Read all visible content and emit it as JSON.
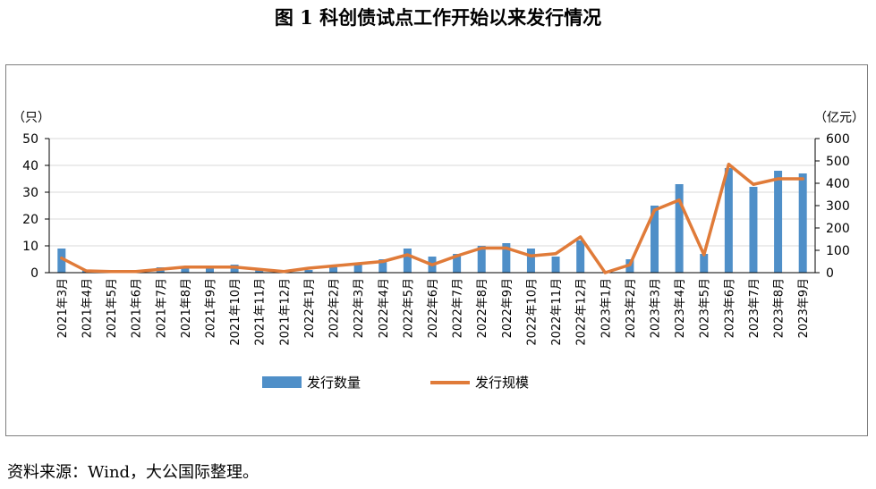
{
  "title": "图 1  科创债试点工作开始以来发行情况",
  "source": "资料来源：Wind，大公国际整理。",
  "chart_data": {
    "type": "bar+line",
    "categories": [
      "2021年3月",
      "2021年4月",
      "2021年5月",
      "2021年6月",
      "2021年7月",
      "2021年8月",
      "2021年9月",
      "2021年10月",
      "2021年11月",
      "2021年12月",
      "2022年1月",
      "2022年2月",
      "2022年3月",
      "2022年4月",
      "2022年5月",
      "2022年6月",
      "2022年7月",
      "2022年8月",
      "2022年9月",
      "2022年10月",
      "2022年11月",
      "2022年12月",
      "2023年1月",
      "2023年2月",
      "2023年3月",
      "2023年4月",
      "2023年5月",
      "2023年6月",
      "2023年7月",
      "2023年8月",
      "2023年9月"
    ],
    "left_axis": {
      "unit": "（只）",
      "ylim": [
        0,
        50
      ],
      "ticks": [
        "0",
        "10",
        "20",
        "30",
        "40",
        "50"
      ]
    },
    "right_axis": {
      "unit": "（亿元）",
      "ylim": [
        0,
        600
      ],
      "ticks": [
        "0",
        "100",
        "200",
        "300",
        "400",
        "500",
        "600"
      ]
    },
    "series": [
      {
        "name": "发行数量",
        "type": "bar",
        "axis": "left",
        "color": "#4f8fc8",
        "values": [
          9,
          1,
          1,
          0,
          2,
          2,
          2,
          3,
          1,
          0,
          1,
          2,
          3,
          5,
          9,
          6,
          7,
          10,
          11,
          9,
          6,
          12,
          0,
          5,
          25,
          33,
          7,
          39,
          32,
          38,
          37
        ]
      },
      {
        "name": "发行规模",
        "type": "line",
        "axis": "right",
        "color": "#e07b39",
        "values": [
          65,
          8,
          5,
          5,
          15,
          25,
          25,
          25,
          15,
          5,
          20,
          30,
          40,
          50,
          80,
          35,
          75,
          110,
          110,
          75,
          85,
          160,
          0,
          35,
          280,
          325,
          80,
          485,
          395,
          420,
          420
        ]
      }
    ],
    "grid": "horizontal",
    "legend_position": "bottom"
  }
}
